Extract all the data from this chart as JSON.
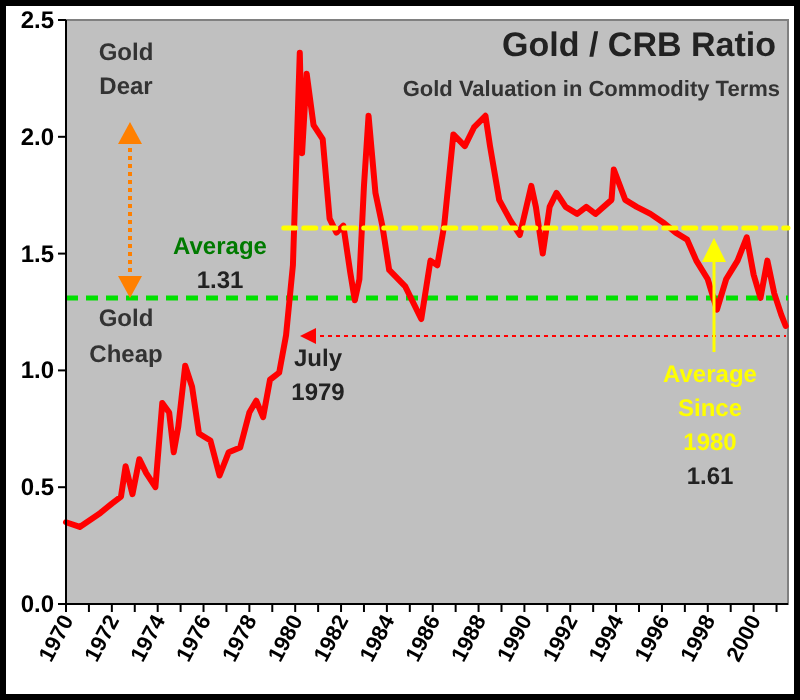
{
  "chart_data": {
    "type": "line",
    "title": "Gold / CRB Ratio",
    "subtitle": "Gold Valuation in Commodity Terms",
    "xlim": [
      1970,
      2001.5
    ],
    "xticks": [
      {
        "value": 1970,
        "label": "1970"
      },
      {
        "value": 1971,
        "label": null
      },
      {
        "value": 1972,
        "label": "1972"
      },
      {
        "value": 1973,
        "label": null
      },
      {
        "value": 1974,
        "label": "1974"
      },
      {
        "value": 1975,
        "label": null
      },
      {
        "value": 1976,
        "label": "1976"
      },
      {
        "value": 1977,
        "label": null
      },
      {
        "value": 1978,
        "label": "1978"
      },
      {
        "value": 1979,
        "label": null
      },
      {
        "value": 1980,
        "label": "1980"
      },
      {
        "value": 1981,
        "label": null
      },
      {
        "value": 1982,
        "label": "1982"
      },
      {
        "value": 1983,
        "label": null
      },
      {
        "value": 1984,
        "label": "1984"
      },
      {
        "value": 1985,
        "label": null
      },
      {
        "value": 1986,
        "label": "1986"
      },
      {
        "value": 1987,
        "label": null
      },
      {
        "value": 1988,
        "label": "1988"
      },
      {
        "value": 1989,
        "label": null
      },
      {
        "value": 1990,
        "label": "1990"
      },
      {
        "value": 1991,
        "label": null
      },
      {
        "value": 1992,
        "label": "1992"
      },
      {
        "value": 1993,
        "label": null
      },
      {
        "value": 1994,
        "label": "1994"
      },
      {
        "value": 1995,
        "label": null
      },
      {
        "value": 1996,
        "label": "1996"
      },
      {
        "value": 1997,
        "label": null
      },
      {
        "value": 1998,
        "label": "1998"
      },
      {
        "value": 1999,
        "label": null
      },
      {
        "value": 2000,
        "label": "2000"
      },
      {
        "value": 2001,
        "label": null
      }
    ],
    "ylim": [
      0,
      2.5
    ],
    "yticks": [
      {
        "value": 0,
        "label": "0.0"
      },
      0.5,
      {
        "value": 1,
        "label": "1.0"
      },
      1.5,
      {
        "value": 2,
        "label": "2.0"
      },
      2.5
    ],
    "grid": false,
    "marker": "none",
    "series": [
      {
        "color": "#ff0000",
        "line_style": "solid",
        "x": [
          1970.0,
          1970.6,
          1971.5,
          1972.0,
          1972.4,
          1972.6,
          1972.9,
          1973.2,
          1973.5,
          1973.9,
          1974.2,
          1974.5,
          1974.7,
          1974.9,
          1975.2,
          1975.5,
          1975.8,
          1976.3,
          1976.7,
          1977.1,
          1977.6,
          1978.0,
          1978.3,
          1978.6,
          1978.9,
          1979.3,
          1979.6,
          1979.9,
          1980.2,
          1980.3,
          1980.5,
          1980.8,
          1981.2,
          1981.5,
          1981.8,
          1982.1,
          1982.4,
          1982.6,
          1982.8,
          1983.0,
          1983.2,
          1983.5,
          1983.8,
          1984.1,
          1984.8,
          1985.5,
          1985.9,
          1986.2,
          1986.5,
          1986.9,
          1987.4,
          1987.8,
          1988.3,
          1988.5,
          1988.9,
          1989.4,
          1989.8,
          1990.3,
          1990.5,
          1990.8,
          1991.1,
          1991.4,
          1991.8,
          1992.3,
          1992.7,
          1993.1,
          1993.8,
          1993.9,
          1994.4,
          1994.9,
          1995.5,
          1996.1,
          1996.6,
          1997.1,
          1997.5,
          1998.0,
          1998.4,
          1998.8,
          1999.3,
          1999.7,
          2000.0,
          2000.3,
          2000.6,
          2000.9,
          2001.2,
          2001.4
        ],
        "values": [
          0.35,
          0.33,
          0.39,
          0.43,
          0.46,
          0.59,
          0.47,
          0.62,
          0.56,
          0.5,
          0.86,
          0.82,
          0.65,
          0.76,
          1.02,
          0.93,
          0.73,
          0.7,
          0.55,
          0.65,
          0.67,
          0.82,
          0.87,
          0.8,
          0.96,
          0.99,
          1.15,
          1.45,
          2.36,
          1.93,
          2.27,
          2.05,
          1.99,
          1.65,
          1.59,
          1.62,
          1.42,
          1.3,
          1.39,
          1.79,
          2.09,
          1.76,
          1.62,
          1.43,
          1.36,
          1.22,
          1.47,
          1.45,
          1.62,
          2.01,
          1.96,
          2.04,
          2.09,
          1.96,
          1.73,
          1.64,
          1.58,
          1.79,
          1.7,
          1.5,
          1.7,
          1.76,
          1.7,
          1.67,
          1.7,
          1.67,
          1.73,
          1.86,
          1.73,
          1.7,
          1.67,
          1.63,
          1.59,
          1.56,
          1.47,
          1.39,
          1.26,
          1.39,
          1.47,
          1.57,
          1.41,
          1.31,
          1.47,
          1.33,
          1.24,
          1.19
        ]
      },
      {
        "color": "#ffff00",
        "line_style": "dashed",
        "x": [
          1979.5,
          2001.5
        ],
        "values": [
          1.61,
          1.61
        ]
      }
    ],
    "ref_lines": [
      {
        "axis": "y",
        "value": 1.31,
        "color": "#00e000",
        "line_style": "dashed"
      }
    ],
    "annotations": [
      "Gold Dear",
      "Gold Cheap",
      "Average",
      "1.31",
      "July 1979",
      "Average Since 1980",
      "1.61"
    ]
  }
}
